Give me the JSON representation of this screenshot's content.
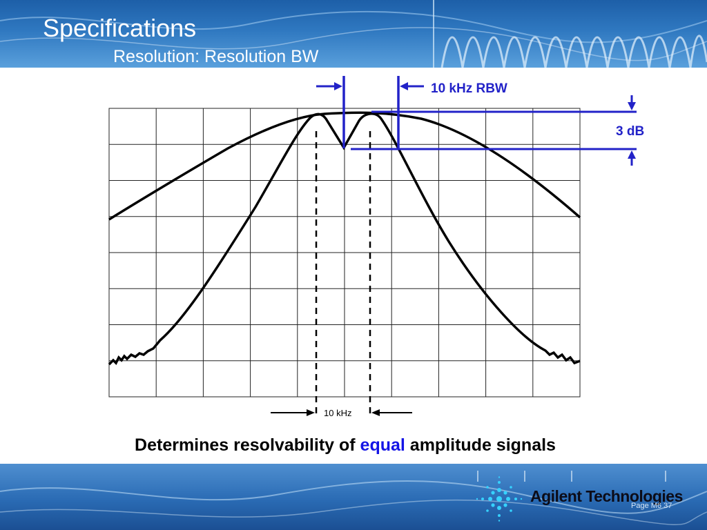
{
  "header": {
    "title": "Specifications",
    "subtitle": "Resolution: Resolution BW"
  },
  "diagram": {
    "rbw_label": "10 kHz RBW",
    "db_label": "3 dB",
    "separation_label": "10 kHz",
    "trace_color": "#000000",
    "annotation_color": "#2222c8",
    "grid": {
      "columns": 10,
      "rows": 8
    }
  },
  "caption": {
    "part1": "Determines resolvability of ",
    "highlight": "equal",
    "part2": " amplitude signals"
  },
  "footer": {
    "brand": "Agilent Technologies",
    "page": "Page M6  37",
    "logo_icon": "agilent-spark-icon"
  }
}
